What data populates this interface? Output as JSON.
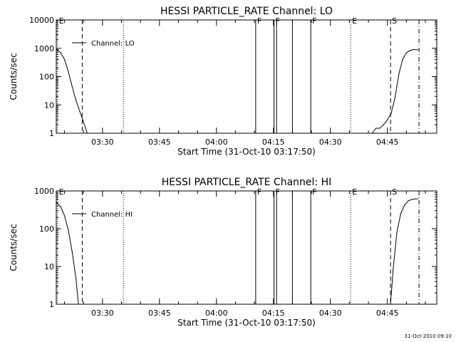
{
  "chart_data": [
    {
      "type": "line",
      "title": "HESSI PARTICLE_RATE Channel: LO",
      "xlabel": "Start Time (31-Oct-10 03:17:50)",
      "ylabel": "Counts/sec",
      "y_scale": "log",
      "ylim": [
        1,
        10000
      ],
      "y_ticks": [
        1,
        10,
        100,
        1000,
        10000
      ],
      "y_tick_labels": [
        "1",
        "10",
        "100",
        "1000",
        "10000"
      ],
      "xlim": [
        "03:17:50",
        "04:58:00"
      ],
      "x_ticks": [
        "03:30",
        "03:45",
        "04:00",
        "04:15",
        "04:30",
        "04:45"
      ],
      "x_tick_labels": [
        "03:30",
        "03:45",
        "04:00",
        "04:15",
        "04:30",
        "04:45"
      ],
      "legend": {
        "label": "Channel: LO",
        "position": "top-left"
      },
      "series": [
        {
          "name": "Channel: LO",
          "x": [
            "03:17:50",
            "03:19:00",
            "03:20:00",
            "03:21:00",
            "03:22:00",
            "03:23:00",
            "03:24:00",
            "03:25:00",
            "03:26:00",
            "04:41:00",
            "04:42:00",
            "04:43:00",
            "04:44:00",
            "04:45:00",
            "04:46:00",
            "04:47:00",
            "04:48:00",
            "04:49:00",
            "04:50:00",
            "04:51:00",
            "04:52:00",
            "04:53:00"
          ],
          "y": [
            950,
            700,
            400,
            150,
            45,
            15,
            6,
            2.5,
            1,
            1,
            1.5,
            1.5,
            2,
            3,
            5,
            18,
            120,
            400,
            700,
            850,
            900,
            900
          ]
        }
      ],
      "markers": [
        {
          "time": "03:18:10",
          "label": "E",
          "style": "dotted"
        },
        {
          "time": "03:24:40",
          "label": "",
          "style": "dashed"
        },
        {
          "time": "03:35:30",
          "label": "",
          "style": "dotted"
        },
        {
          "time": "04:10:20",
          "label": "F",
          "style": "solid"
        },
        {
          "time": "04:15:10",
          "label": "F",
          "style": "solid"
        },
        {
          "time": "04:15:50",
          "label": "",
          "style": "solid"
        },
        {
          "time": "04:20:00",
          "label": "",
          "style": "solid"
        },
        {
          "time": "04:24:50",
          "label": "F",
          "style": "solid"
        },
        {
          "time": "04:35:20",
          "label": "E",
          "style": "dotted"
        },
        {
          "time": "04:45:50",
          "label": "S",
          "style": "dashed"
        },
        {
          "time": "04:53:20",
          "label": "",
          "style": "dashdot"
        }
      ]
    },
    {
      "type": "line",
      "title": "HESSI PARTICLE_RATE Channel: HI",
      "xlabel": "Start Time (31-Oct-10 03:17:50)",
      "ylabel": "Counts/sec",
      "y_scale": "log",
      "ylim": [
        1,
        1000
      ],
      "y_ticks": [
        1,
        10,
        100,
        1000
      ],
      "y_tick_labels": [
        "1",
        "10",
        "100",
        "1000"
      ],
      "xlim": [
        "03:17:50",
        "04:58:00"
      ],
      "x_ticks": [
        "03:30",
        "03:45",
        "04:00",
        "04:15",
        "04:30",
        "04:45"
      ],
      "x_tick_labels": [
        "03:30",
        "03:45",
        "04:00",
        "04:15",
        "04:30",
        "04:45"
      ],
      "legend": {
        "label": "Channel: HI",
        "position": "top-left"
      },
      "series": [
        {
          "name": "Channel: HI",
          "x": [
            "03:17:50",
            "03:19:00",
            "03:20:00",
            "03:21:00",
            "03:22:00",
            "03:23:00",
            "03:23:40",
            "04:45:50",
            "04:46:30",
            "04:47:30",
            "04:48:30",
            "04:49:30",
            "04:50:30",
            "04:51:30",
            "04:52:30",
            "04:53:00"
          ],
          "y": [
            500,
            380,
            220,
            90,
            25,
            5,
            1,
            1,
            8,
            80,
            250,
            420,
            550,
            600,
            620,
            620
          ]
        }
      ],
      "markers": [
        {
          "time": "03:18:10",
          "label": "E",
          "style": "dotted"
        },
        {
          "time": "03:24:40",
          "label": "",
          "style": "dashed"
        },
        {
          "time": "03:35:30",
          "label": "",
          "style": "dotted"
        },
        {
          "time": "04:10:20",
          "label": "F",
          "style": "solid"
        },
        {
          "time": "04:15:10",
          "label": "F",
          "style": "solid"
        },
        {
          "time": "04:15:50",
          "label": "",
          "style": "solid"
        },
        {
          "time": "04:20:00",
          "label": "",
          "style": "solid"
        },
        {
          "time": "04:24:50",
          "label": "F",
          "style": "solid"
        },
        {
          "time": "04:35:20",
          "label": "E",
          "style": "dotted"
        },
        {
          "time": "04:45:50",
          "label": "S",
          "style": "dashed"
        },
        {
          "time": "04:53:20",
          "label": "",
          "style": "dashdot"
        }
      ]
    }
  ],
  "footer": {
    "timestamp": "31-Oct-2010 09:10"
  }
}
